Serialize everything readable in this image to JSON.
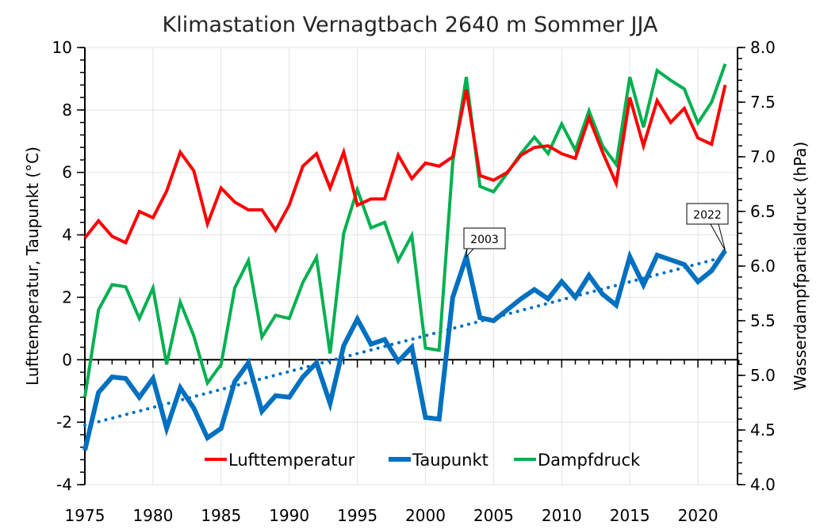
{
  "chart_data": {
    "type": "line",
    "title": "Klimastation Vernagtbach 2640 m Sommer JJA",
    "xlabel": "",
    "ylabel_left": "Lufttemperatur, Taupunkt (°C)",
    "ylabel_right": "Wasserdampfpartialdruck (hPa)",
    "xlim": [
      1975,
      2023
    ],
    "ylim_left": [
      -4,
      10
    ],
    "ylim_right": [
      4.0,
      8.0
    ],
    "x_ticks": [
      "1975",
      "1980",
      "1985",
      "1990",
      "1995",
      "2000",
      "2005",
      "2010",
      "2015",
      "2020"
    ],
    "y_ticks_left": [
      "-4",
      "-2",
      "0",
      "2",
      "4",
      "6",
      "8",
      "10"
    ],
    "y_ticks_right": [
      "4.0",
      "4.5",
      "5.0",
      "5.5",
      "6.0",
      "6.5",
      "7.0",
      "7.5",
      "8.0"
    ],
    "grid": true,
    "legend_position": "bottom-center",
    "x": [
      1975,
      1976,
      1977,
      1978,
      1979,
      1980,
      1981,
      1982,
      1983,
      1984,
      1985,
      1986,
      1987,
      1988,
      1989,
      1990,
      1991,
      1992,
      1993,
      1994,
      1995,
      1996,
      1997,
      1998,
      1999,
      2000,
      2001,
      2002,
      2003,
      2004,
      2005,
      2006,
      2007,
      2008,
      2009,
      2010,
      2011,
      2012,
      2013,
      2014,
      2015,
      2016,
      2017,
      2018,
      2019,
      2020,
      2021,
      2022
    ],
    "series": [
      {
        "name": "Lufttemperatur",
        "axis": "left",
        "color": "#ff0000",
        "values": [
          3.9,
          4.45,
          3.95,
          3.75,
          4.75,
          4.55,
          5.4,
          6.65,
          6.05,
          4.35,
          5.5,
          5.05,
          4.8,
          4.8,
          4.15,
          4.95,
          6.2,
          6.6,
          5.5,
          6.65,
          4.95,
          5.15,
          5.15,
          6.55,
          5.8,
          6.3,
          6.2,
          6.5,
          8.65,
          5.9,
          5.75,
          6.0,
          6.55,
          6.8,
          6.85,
          6.6,
          6.45,
          7.75,
          6.65,
          5.65,
          8.4,
          6.85,
          8.3,
          7.6,
          8.05,
          7.1,
          6.9,
          8.8
        ]
      },
      {
        "name": "Taupunkt",
        "axis": "left",
        "color": "#0070c0",
        "values": [
          -2.9,
          -1.05,
          -0.55,
          -0.6,
          -1.2,
          -0.6,
          -2.2,
          -0.9,
          -1.55,
          -2.5,
          -2.2,
          -0.7,
          -0.1,
          -1.65,
          -1.15,
          -1.2,
          -0.55,
          -0.1,
          -1.4,
          0.45,
          1.3,
          0.5,
          0.65,
          -0.05,
          0.4,
          -1.85,
          -1.9,
          2.0,
          3.3,
          1.35,
          1.25,
          1.6,
          1.95,
          2.25,
          1.95,
          2.5,
          2.0,
          2.7,
          2.1,
          1.75,
          3.3,
          2.4,
          3.35,
          3.2,
          3.05,
          2.5,
          2.85,
          3.5
        ]
      },
      {
        "name": "Dampfdruck",
        "axis": "right",
        "color": "#00b050",
        "values": [
          4.8,
          5.6,
          5.83,
          5.81,
          5.52,
          5.8,
          5.1,
          5.67,
          5.36,
          4.93,
          5.1,
          5.8,
          6.05,
          5.35,
          5.55,
          5.52,
          5.85,
          6.08,
          5.2,
          6.3,
          6.7,
          6.35,
          6.4,
          6.05,
          6.28,
          5.25,
          5.23,
          6.95,
          7.73,
          6.73,
          6.68,
          6.85,
          7.03,
          7.18,
          7.03,
          7.3,
          7.06,
          7.42,
          7.1,
          6.93,
          7.73,
          7.27,
          7.79,
          7.7,
          7.62,
          7.31,
          7.5,
          7.85
        ]
      }
    ],
    "trendline": {
      "name": "Taupunkt linear trend",
      "axis": "left",
      "color": "#0070c0",
      "style": "dotted",
      "x": [
        1975,
        2022
      ],
      "values": [
        -2.1,
        3.3
      ]
    },
    "annotations": [
      {
        "text": "2003",
        "series": "Taupunkt",
        "x": 2003
      },
      {
        "text": "2022",
        "series": "Taupunkt",
        "x": 2022
      }
    ]
  }
}
